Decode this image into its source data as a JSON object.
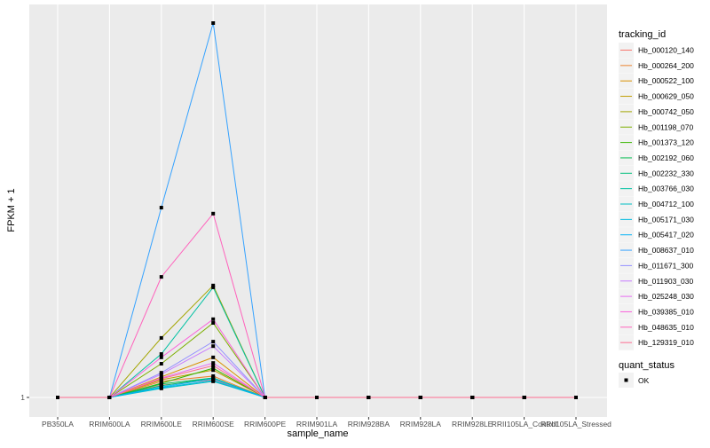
{
  "chart_data": {
    "type": "line",
    "title": "",
    "xlabel": "sample_name",
    "ylabel": "FPKM + 1",
    "categories": [
      "PB350LA",
      "RRIM600LA",
      "RRIM600LE",
      "RRIM600SE",
      "RRIM600PE",
      "RRIM901LA",
      "RRIM928BA",
      "RRIM928LA",
      "RRIM928LE",
      "RRII105LA_Control",
      "RRII105LA_Stressed"
    ],
    "y_ticks": [
      "1"
    ],
    "ylim": [
      0.5,
      11.5
    ],
    "grid": true,
    "legend_placement": "right",
    "legend_title": "tracking_id",
    "shape_legend_title": "quant_status",
    "shape_legend_items": [
      "OK"
    ],
    "series": [
      {
        "name": "Hb_000120_140",
        "color": "#F8766D",
        "values": [
          1,
          1,
          1.33,
          1.47,
          1,
          1,
          1,
          1,
          1,
          1,
          1
        ]
      },
      {
        "name": "Hb_000264_200",
        "color": "#EA8331",
        "values": [
          1,
          1,
          1.43,
          1.57,
          1,
          1,
          1,
          1,
          1,
          1,
          1
        ]
      },
      {
        "name": "Hb_000522_100",
        "color": "#D89000",
        "values": [
          1,
          1,
          1.55,
          2.07,
          1,
          1,
          1,
          1,
          1,
          1,
          1
        ]
      },
      {
        "name": "Hb_000629_050",
        "color": "#C09B00",
        "values": [
          1,
          1,
          1.47,
          1.73,
          1,
          1,
          1,
          1,
          1,
          1,
          1
        ]
      },
      {
        "name": "Hb_000742_050",
        "color": "#A3A500",
        "values": [
          1,
          1,
          2.59,
          3.99,
          1,
          1,
          1,
          1,
          1,
          1,
          1
        ]
      },
      {
        "name": "Hb_001198_070",
        "color": "#7CAE00",
        "values": [
          1,
          1,
          1.9,
          2.99,
          1,
          1,
          1,
          1,
          1,
          1,
          1
        ]
      },
      {
        "name": "Hb_001373_120",
        "color": "#39B600",
        "values": [
          1,
          1,
          1.38,
          1.78,
          1,
          1,
          1,
          1,
          1,
          1,
          1
        ]
      },
      {
        "name": "Hb_002192_060",
        "color": "#00BB4E",
        "values": [
          1,
          1,
          1.36,
          1.52,
          1,
          1,
          1,
          1,
          1,
          1,
          1
        ]
      },
      {
        "name": "Hb_002232_330",
        "color": "#00BF7D",
        "values": [
          1,
          1,
          1.31,
          1.52,
          1,
          1,
          1,
          1,
          1,
          1,
          1
        ]
      },
      {
        "name": "Hb_003766_030",
        "color": "#00C1A3",
        "values": [
          1,
          1,
          2.16,
          3.94,
          1,
          1,
          1,
          1,
          1,
          1,
          1
        ]
      },
      {
        "name": "Hb_004712_100",
        "color": "#00BFC4",
        "values": [
          1,
          1,
          1.24,
          1.43,
          1,
          1,
          1,
          1,
          1,
          1,
          1
        ]
      },
      {
        "name": "Hb_005171_030",
        "color": "#00BAE0",
        "values": [
          1,
          1,
          1.26,
          1.45,
          1,
          1,
          1,
          1,
          1,
          1,
          1
        ]
      },
      {
        "name": "Hb_005417_020",
        "color": "#00B0F6",
        "values": [
          1,
          1,
          1.28,
          1.5,
          1,
          1,
          1,
          1,
          1,
          1,
          1
        ]
      },
      {
        "name": "Hb_008637_010",
        "color": "#35A2FF",
        "values": [
          1,
          1,
          6.07,
          11.0,
          1,
          1,
          1,
          1,
          1,
          1,
          1
        ]
      },
      {
        "name": "Hb_011671_300",
        "color": "#9590FF",
        "values": [
          1,
          1,
          1.66,
          2.49,
          1,
          1,
          1,
          1,
          1,
          1,
          1
        ]
      },
      {
        "name": "Hb_011903_030",
        "color": "#C77CFF",
        "values": [
          1,
          1,
          1.62,
          2.37,
          1,
          1,
          1,
          1,
          1,
          1,
          1
        ]
      },
      {
        "name": "Hb_025248_030",
        "color": "#E76BF3",
        "values": [
          1,
          1,
          1.52,
          1.92,
          1,
          1,
          1,
          1,
          1,
          1,
          1
        ]
      },
      {
        "name": "Hb_039385_010",
        "color": "#FA62DB",
        "values": [
          1,
          1,
          2.07,
          3.09,
          1,
          1,
          1,
          1,
          1,
          1,
          1
        ]
      },
      {
        "name": "Hb_048635_010",
        "color": "#FF62BC",
        "values": [
          1,
          1,
          4.22,
          5.91,
          1,
          1,
          1,
          1,
          1,
          1,
          1
        ]
      },
      {
        "name": "Hb_129319_010",
        "color": "#FF6C91",
        "values": [
          1,
          1,
          1.5,
          1.85,
          1,
          1,
          1,
          1,
          1,
          1,
          1
        ]
      }
    ]
  }
}
